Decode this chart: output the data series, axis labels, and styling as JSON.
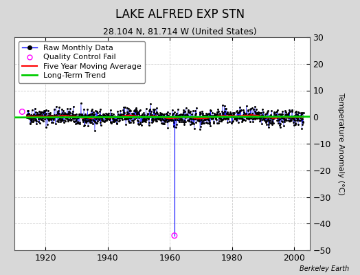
{
  "title": "LAKE ALFRED EXP STN",
  "subtitle": "28.104 N, 81.714 W (United States)",
  "ylabel": "Temperature Anomaly (°C)",
  "credit": "Berkeley Earth",
  "xlim": [
    1910,
    2005
  ],
  "ylim": [
    -50,
    30
  ],
  "yticks": [
    -50,
    -40,
    -30,
    -20,
    -10,
    0,
    10,
    20,
    30
  ],
  "xticks": [
    1920,
    1940,
    1960,
    1980,
    2000
  ],
  "bg_color": "#d8d8d8",
  "plot_bg_color": "#ffffff",
  "grid_color": "#c0c0c0",
  "raw_line_color": "#0000ff",
  "raw_dot_color": "#000000",
  "ma_color": "#ff0000",
  "trend_color": "#00cc00",
  "qc_fail_color": "#ff00ff",
  "data_x_start": 1914,
  "data_x_end": 2003,
  "anomaly_std": 1.5,
  "outlier1_x": 1912.5,
  "outlier1_y": 2.0,
  "outlier2_x": 1961.5,
  "outlier2_y": -44.5,
  "spike_top": 0.0,
  "trend_slope": 0.003,
  "trend_intercept": 0.0,
  "ma_window": 60,
  "seed": 42,
  "title_fontsize": 12,
  "subtitle_fontsize": 9,
  "tick_fontsize": 9,
  "ylabel_fontsize": 8,
  "legend_fontsize": 8,
  "credit_fontsize": 7
}
